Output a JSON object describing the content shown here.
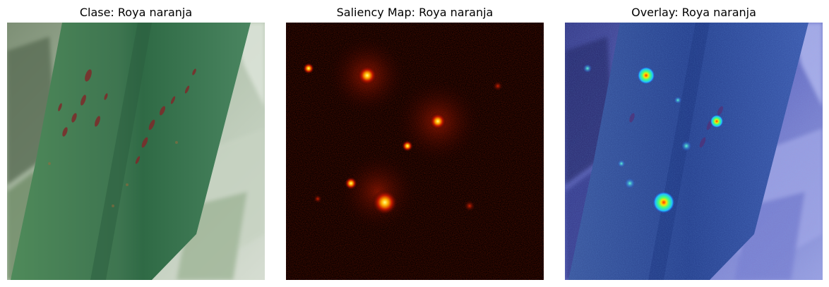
{
  "panels": [
    {
      "title": "Clase: Roya naranja",
      "content": "original-leaf-photo"
    },
    {
      "title": "Saliency Map: Roya naranja",
      "content": "saliency-heatmap",
      "colormap": "hot"
    },
    {
      "title": "Overlay: Roya naranja",
      "content": "saliency-overlay",
      "colormap": "jet"
    }
  ],
  "colors": {
    "leaf_green": "#3f7a4f",
    "rust_spot": "#8a2a2a",
    "background_blur": "#a9b9a4",
    "saliency_black": "#0a0000",
    "saliency_red": "#b01000",
    "saliency_yellow": "#ffe040",
    "overlay_blue": "#2a3fa8",
    "overlay_light": "#8a8fd8"
  }
}
